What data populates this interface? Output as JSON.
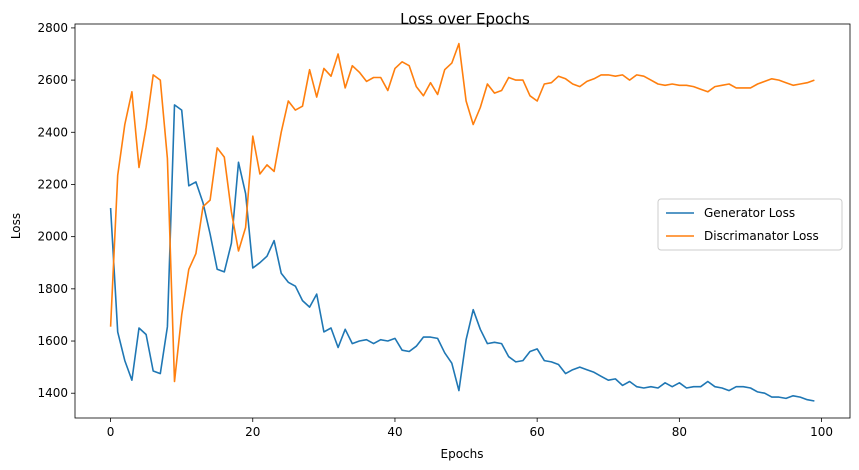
{
  "chart_data": {
    "type": "line",
    "title": "Loss over Epochs",
    "xlabel": "Epochs",
    "ylabel": "Loss",
    "xlim": [
      -5,
      104
    ],
    "ylim": [
      1305,
      2815
    ],
    "xticks": [
      0,
      20,
      40,
      60,
      80,
      100
    ],
    "yticks": [
      1400,
      1600,
      1800,
      2000,
      2200,
      2400,
      2600,
      2800
    ],
    "grid": false,
    "legend": "center-right",
    "series": [
      {
        "name": "Generator Loss",
        "color": "#1f77b4",
        "x": [
          0,
          1,
          2,
          3,
          4,
          5,
          6,
          7,
          8,
          9,
          10,
          11,
          12,
          13,
          14,
          15,
          16,
          17,
          18,
          19,
          20,
          21,
          22,
          23,
          24,
          25,
          26,
          27,
          28,
          29,
          30,
          31,
          32,
          33,
          34,
          35,
          36,
          37,
          38,
          39,
          40,
          41,
          42,
          43,
          44,
          45,
          46,
          47,
          48,
          49,
          50,
          51,
          52,
          53,
          54,
          55,
          56,
          57,
          58,
          59,
          60,
          61,
          62,
          63,
          64,
          65,
          66,
          67,
          68,
          69,
          70,
          71,
          72,
          73,
          74,
          75,
          76,
          77,
          78,
          79,
          80,
          81,
          82,
          83,
          84,
          85,
          86,
          87,
          88,
          89,
          90,
          91,
          92,
          93,
          94,
          95,
          96,
          97,
          98,
          99
        ],
        "values": [
          2110,
          1635,
          1525,
          1450,
          1650,
          1625,
          1485,
          1475,
          1655,
          2505,
          2485,
          2195,
          2210,
          2130,
          2010,
          1875,
          1865,
          1975,
          2285,
          2165,
          1880,
          1900,
          1925,
          1985,
          1860,
          1825,
          1810,
          1755,
          1730,
          1780,
          1635,
          1650,
          1575,
          1645,
          1590,
          1600,
          1605,
          1590,
          1605,
          1600,
          1610,
          1565,
          1560,
          1580,
          1615,
          1615,
          1610,
          1555,
          1515,
          1410,
          1605,
          1720,
          1645,
          1590,
          1595,
          1590,
          1540,
          1520,
          1525,
          1560,
          1570,
          1525,
          1520,
          1510,
          1475,
          1490,
          1500,
          1490,
          1480,
          1465,
          1450,
          1455,
          1430,
          1445,
          1425,
          1420,
          1425,
          1420,
          1440,
          1425,
          1440,
          1420,
          1425,
          1425,
          1445,
          1425,
          1420,
          1410,
          1425,
          1425,
          1420,
          1405,
          1400,
          1385,
          1385,
          1380,
          1390,
          1385,
          1375,
          1370
        ]
      },
      {
        "name": "Discrimanator Loss",
        "color": "#ff7f0e",
        "x": [
          0,
          1,
          2,
          3,
          4,
          5,
          6,
          7,
          8,
          9,
          10,
          11,
          12,
          13,
          14,
          15,
          16,
          17,
          18,
          19,
          20,
          21,
          22,
          23,
          24,
          25,
          26,
          27,
          28,
          29,
          30,
          31,
          32,
          33,
          34,
          35,
          36,
          37,
          38,
          39,
          40,
          41,
          42,
          43,
          44,
          45,
          46,
          47,
          48,
          49,
          50,
          51,
          52,
          53,
          54,
          55,
          56,
          57,
          58,
          59,
          60,
          61,
          62,
          63,
          64,
          65,
          66,
          67,
          68,
          69,
          70,
          71,
          72,
          73,
          74,
          75,
          76,
          77,
          78,
          79,
          80,
          81,
          82,
          83,
          84,
          85,
          86,
          87,
          88,
          89,
          90,
          91,
          92,
          93,
          94,
          95,
          96,
          97,
          98,
          99
        ],
        "values": [
          1655,
          2235,
          2430,
          2555,
          2265,
          2420,
          2620,
          2600,
          2300,
          1445,
          1700,
          1875,
          1935,
          2115,
          2140,
          2340,
          2305,
          2095,
          1945,
          2035,
          2385,
          2240,
          2275,
          2250,
          2400,
          2520,
          2485,
          2500,
          2640,
          2535,
          2645,
          2615,
          2700,
          2570,
          2655,
          2630,
          2595,
          2610,
          2610,
          2560,
          2645,
          2670,
          2655,
          2575,
          2540,
          2590,
          2545,
          2640,
          2665,
          2740,
          2520,
          2430,
          2495,
          2585,
          2550,
          2560,
          2610,
          2600,
          2600,
          2540,
          2520,
          2585,
          2590,
          2615,
          2605,
          2585,
          2575,
          2595,
          2605,
          2620,
          2620,
          2615,
          2620,
          2600,
          2620,
          2615,
          2600,
          2585,
          2580,
          2585,
          2580,
          2580,
          2575,
          2565,
          2555,
          2575,
          2580,
          2585,
          2570,
          2570,
          2570,
          2585,
          2595,
          2605,
          2600,
          2590,
          2580,
          2585,
          2590,
          2600
        ]
      }
    ]
  }
}
